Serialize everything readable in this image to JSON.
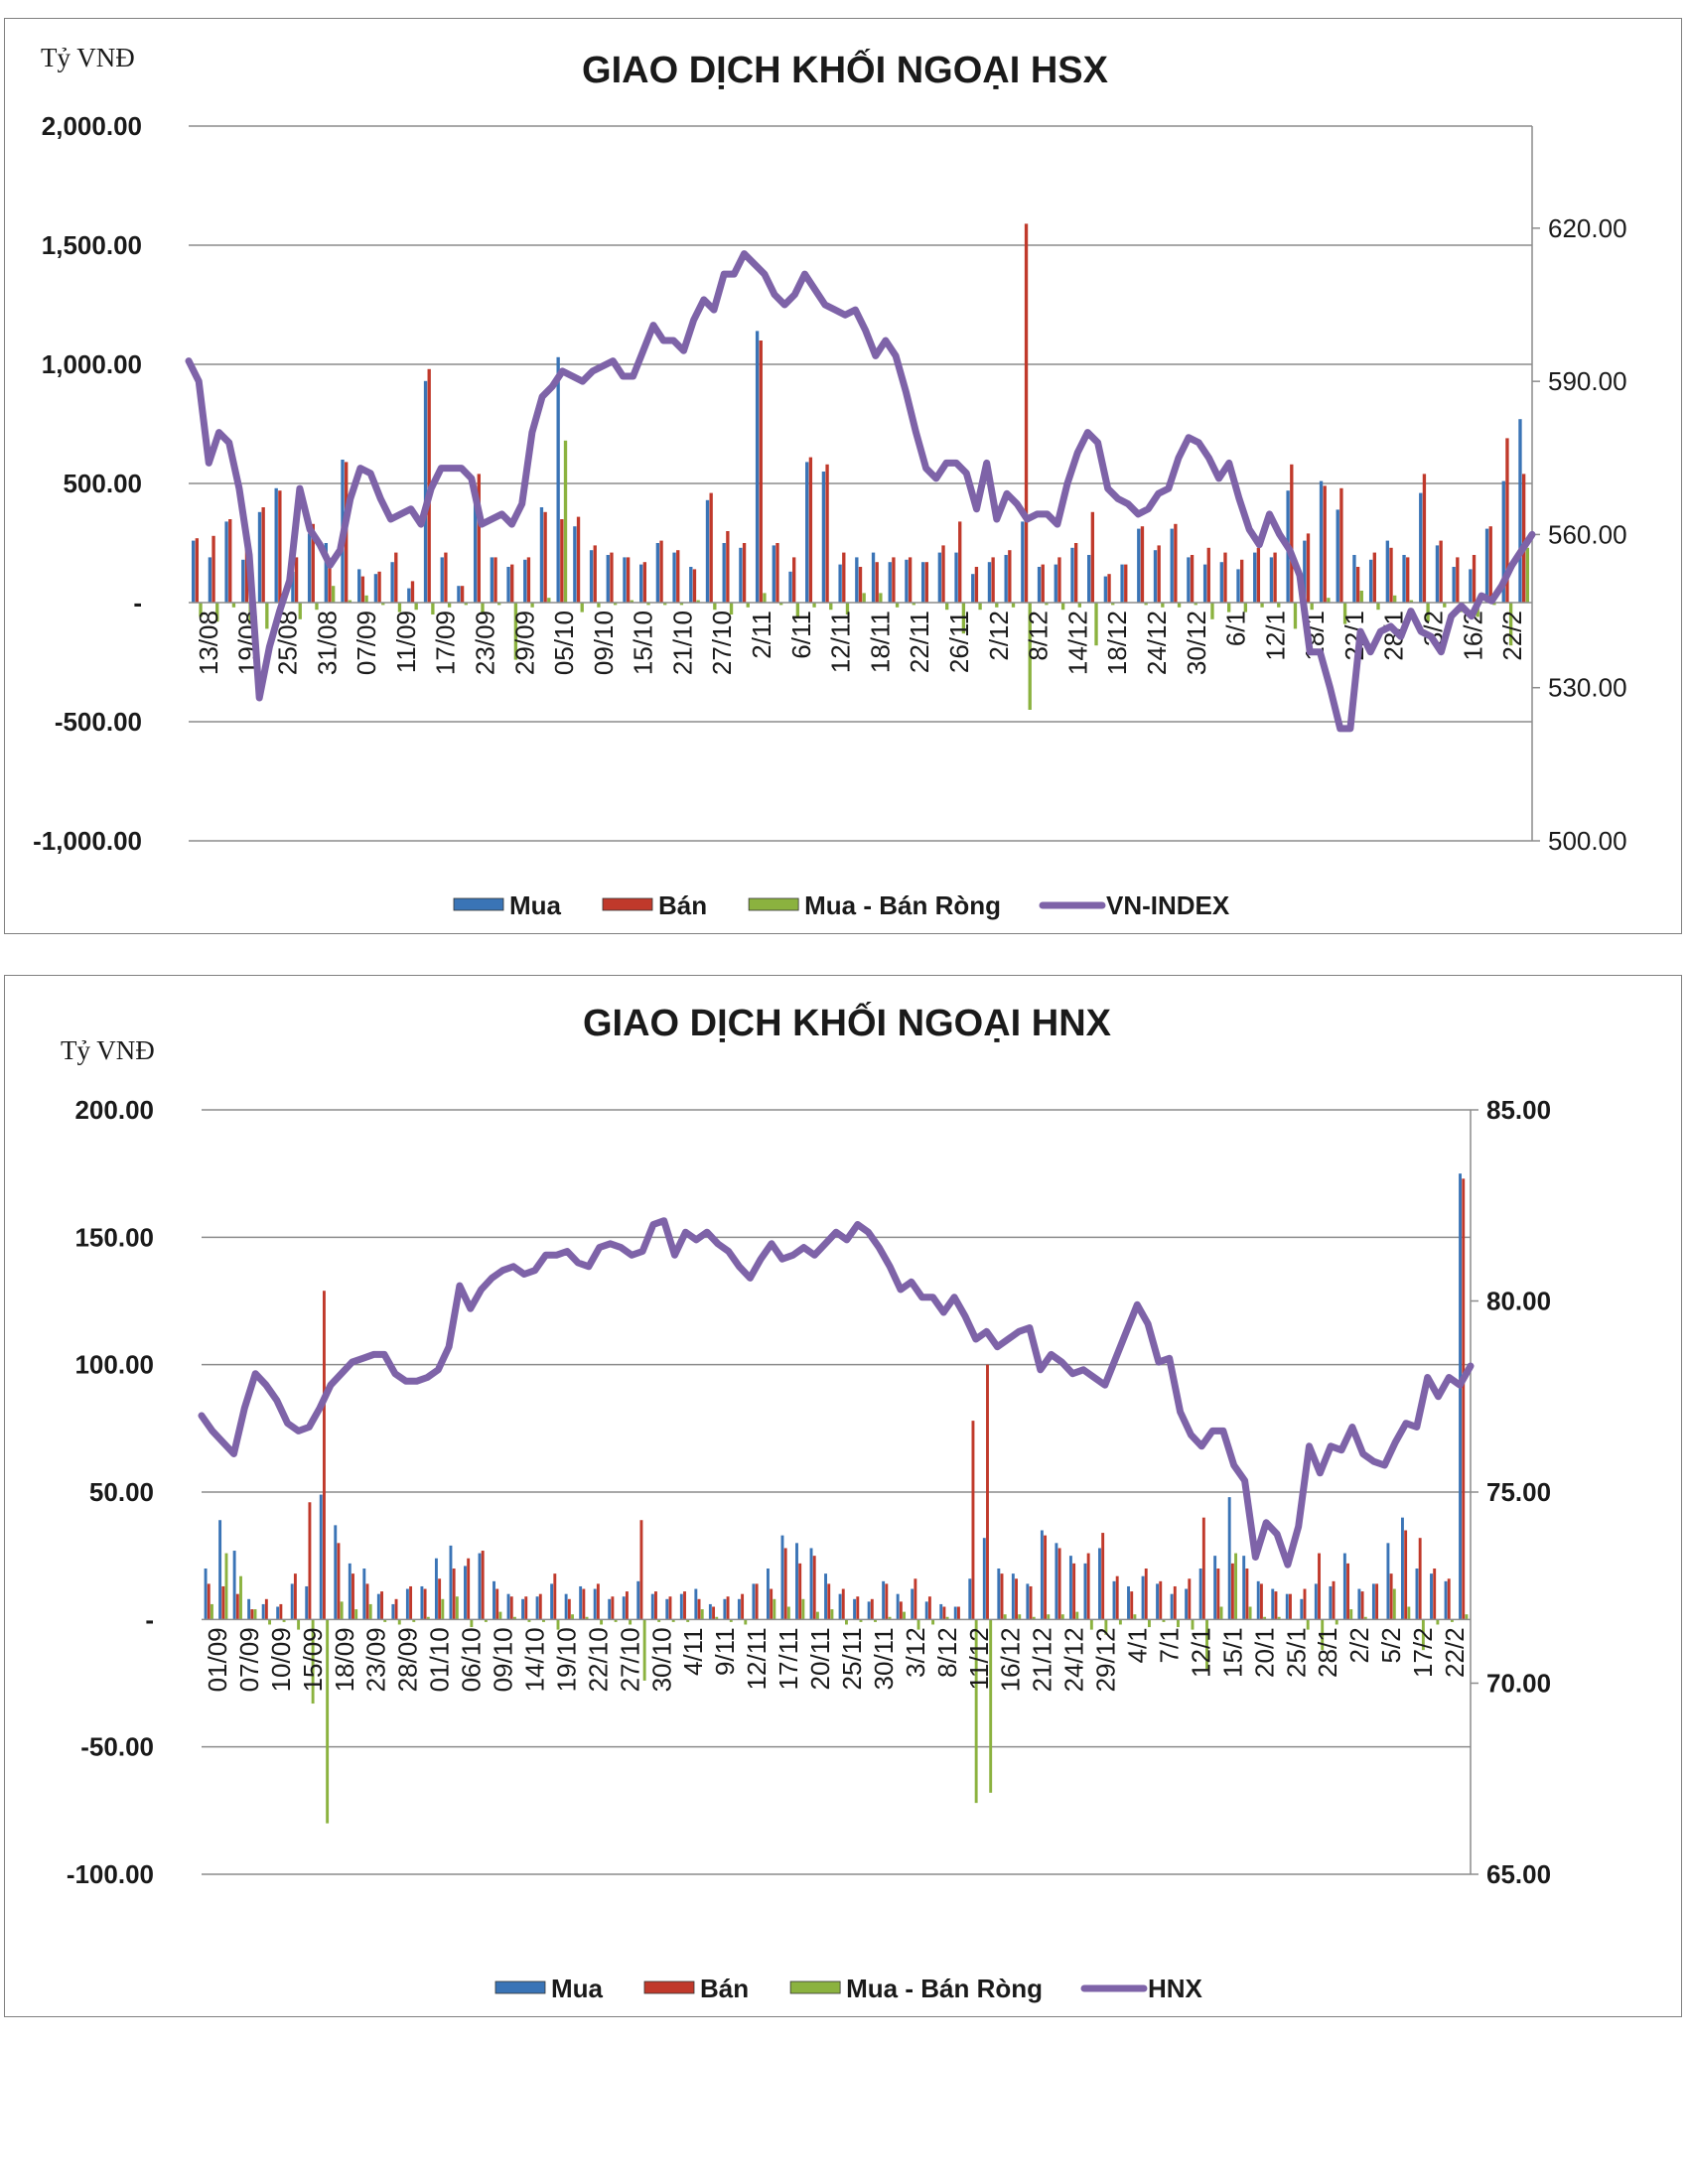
{
  "colors": {
    "buy": "#3a74b6",
    "sell": "#c0392b",
    "net": "#8bb23f",
    "index": "#7e63a8",
    "grid": "#8c8c8c"
  },
  "chart_data": [
    {
      "id": "hsx",
      "type": "bar",
      "title": "GIAO DỊCH KHỐI NGOẠI HSX",
      "unit_label": "Tỷ VNĐ",
      "ylim": [
        -1000,
        2000
      ],
      "y_ticks": [
        {
          "v": 2000,
          "label": "2,000.00"
        },
        {
          "v": 1500,
          "label": "1,500.00"
        },
        {
          "v": 1000,
          "label": "1,000.00"
        },
        {
          "v": 500,
          "label": "500.00"
        },
        {
          "v": 0,
          "label": "-"
        },
        {
          "v": -500,
          "label": "-500.00"
        },
        {
          "v": -1000,
          "label": "-1,000.00"
        }
      ],
      "y2lim": [
        500,
        640
      ],
      "y2_ticks": [
        {
          "v": 620,
          "label": "620.00"
        },
        {
          "v": 590,
          "label": "590.00"
        },
        {
          "v": 560,
          "label": "560.00"
        },
        {
          "v": 530,
          "label": "530.00"
        },
        {
          "v": 500,
          "label": "500.00"
        }
      ],
      "x_labels": [
        "13/08",
        "19/08",
        "25/08",
        "31/08",
        "07/09",
        "11/09",
        "17/09",
        "23/09",
        "29/09",
        "05/10",
        "09/10",
        "15/10",
        "21/10",
        "27/10",
        "2/11",
        "6/11",
        "12/11",
        "18/11",
        "22/11",
        "26/11",
        "2/12",
        "8/12",
        "14/12",
        "18/12",
        "24/12",
        "30/12",
        "6/1",
        "12/1",
        "18/1",
        "22/1",
        "28/1",
        "3/2",
        "16/2",
        "22/2"
      ],
      "legend": [
        "Mua",
        "Bán",
        "Mua - Bán Ròng",
        "VN-INDEX"
      ],
      "index_name": "VN-INDEX",
      "buy": [
        260,
        190,
        340,
        180,
        380,
        480,
        130,
        290,
        250,
        600,
        140,
        120,
        170,
        60,
        930,
        190,
        70,
        490,
        190,
        150,
        180,
        400,
        1030,
        320,
        220,
        200,
        190,
        160,
        250,
        210,
        150,
        430,
        250,
        230,
        1140,
        240,
        130,
        590,
        550,
        160,
        190,
        210,
        170,
        180,
        170,
        210,
        210,
        120,
        170,
        200,
        340,
        150,
        160,
        230,
        200,
        110,
        160,
        310,
        220,
        310,
        190,
        160,
        170,
        140,
        210,
        190,
        470,
        260,
        510,
        390,
        200,
        180,
        260,
        200,
        460,
        240,
        150,
        140,
        310,
        510,
        770
      ],
      "sell": [
        270,
        280,
        350,
        240,
        400,
        470,
        190,
        330,
        180,
        590,
        110,
        130,
        210,
        90,
        980,
        210,
        70,
        540,
        190,
        160,
        190,
        380,
        350,
        360,
        240,
        210,
        190,
        170,
        260,
        220,
        140,
        460,
        300,
        250,
        1100,
        250,
        190,
        610,
        580,
        210,
        150,
        170,
        190,
        190,
        170,
        240,
        340,
        150,
        190,
        220,
        1590,
        160,
        190,
        250,
        380,
        120,
        160,
        320,
        240,
        330,
        200,
        230,
        210,
        180,
        230,
        210,
        580,
        290,
        490,
        480,
        150,
        210,
        230,
        190,
        540,
        260,
        190,
        200,
        320,
        690,
        540
      ],
      "net": [
        -60,
        -80,
        -20,
        -90,
        -110,
        10,
        -70,
        -30,
        70,
        10,
        30,
        -10,
        -40,
        -30,
        -50,
        -20,
        -10,
        -50,
        -10,
        -240,
        -20,
        20,
        680,
        -40,
        -20,
        -10,
        10,
        -10,
        -10,
        -10,
        10,
        -30,
        -50,
        -20,
        40,
        -10,
        -60,
        -20,
        -30,
        -50,
        40,
        40,
        -20,
        -10,
        0,
        -30,
        -130,
        -30,
        -20,
        -20,
        -450,
        -10,
        -30,
        -20,
        -180,
        -10,
        0,
        -10,
        -20,
        -20,
        -10,
        -70,
        -40,
        -40,
        -20,
        -20,
        -110,
        -30,
        20,
        -90,
        50,
        -30,
        30,
        10,
        -80,
        -20,
        -40,
        -60,
        -10,
        -180,
        230
      ],
      "index": [
        594,
        590,
        574,
        580,
        578,
        569,
        556,
        528,
        538,
        545,
        551,
        569,
        561,
        558,
        554,
        557,
        567,
        573,
        572,
        567,
        563,
        564,
        565,
        562,
        569,
        573,
        573,
        573,
        571,
        562,
        563,
        564,
        562,
        566,
        580,
        587,
        589,
        592,
        591,
        590,
        592,
        593,
        594,
        591,
        591,
        596,
        601,
        598,
        598,
        596,
        602,
        606,
        604,
        611,
        611,
        615,
        613,
        611,
        607,
        605,
        607,
        611,
        608,
        605,
        604,
        603,
        604,
        600,
        595,
        598,
        595,
        588,
        580,
        573,
        571,
        574,
        574,
        572,
        565,
        574,
        563,
        568,
        566,
        563,
        564,
        564,
        562,
        570,
        576,
        580,
        578,
        569,
        567,
        566,
        564,
        565,
        568,
        569,
        575,
        579,
        578,
        575,
        571,
        574,
        567,
        561,
        558,
        564,
        560,
        557,
        552,
        537,
        537,
        530,
        522,
        522,
        541,
        537,
        541,
        542,
        540,
        545,
        541,
        540,
        537,
        544,
        546,
        544,
        548,
        547,
        550,
        554,
        557,
        560
      ]
    },
    {
      "id": "hnx",
      "type": "bar",
      "title": "GIAO DỊCH KHỐI NGOẠI HNX",
      "unit_label": "Tỷ VNĐ",
      "ylim": [
        -100,
        200
      ],
      "y_ticks": [
        {
          "v": 200,
          "label": "200.00"
        },
        {
          "v": 150,
          "label": "150.00"
        },
        {
          "v": 100,
          "label": "100.00"
        },
        {
          "v": 50,
          "label": "50.00"
        },
        {
          "v": 0,
          "label": "-"
        },
        {
          "v": -50,
          "label": "-50.00"
        },
        {
          "v": -100,
          "label": "-100.00"
        }
      ],
      "y2lim": [
        65,
        85
      ],
      "y2_ticks": [
        {
          "v": 85,
          "label": "85.00"
        },
        {
          "v": 80,
          "label": "80.00"
        },
        {
          "v": 75,
          "label": "75.00"
        },
        {
          "v": 70,
          "label": "70.00"
        },
        {
          "v": 65,
          "label": "65.00"
        }
      ],
      "x_labels": [
        "01/09",
        "07/09",
        "10/09",
        "15/09",
        "18/09",
        "23/09",
        "28/09",
        "01/10",
        "06/10",
        "09/10",
        "14/10",
        "19/10",
        "22/10",
        "27/10",
        "30/10",
        "4/11",
        "9/11",
        "12/11",
        "17/11",
        "20/11",
        "25/11",
        "30/11",
        "3/12",
        "8/12",
        "11/12",
        "16/12",
        "21/12",
        "24/12",
        "29/12",
        "4/1",
        "7/1",
        "12/1",
        "15/1",
        "20/1",
        "25/1",
        "28/1",
        "2/2",
        "5/2",
        "17/2",
        "22/2"
      ],
      "legend": [
        "Mua",
        "Bán",
        "Mua - Bán Ròng",
        "HNX"
      ],
      "index_name": "HNX",
      "buy": [
        20,
        39,
        27,
        8,
        6,
        5,
        14,
        13,
        49,
        37,
        22,
        20,
        10,
        6,
        12,
        13,
        24,
        29,
        21,
        26,
        15,
        10,
        8,
        9,
        14,
        10,
        13,
        12,
        8,
        9,
        15,
        10,
        8,
        10,
        12,
        6,
        8,
        8,
        14,
        20,
        33,
        30,
        28,
        18,
        10,
        8,
        7,
        15,
        10,
        12,
        7,
        6,
        5,
        16,
        32,
        20,
        18,
        14,
        35,
        30,
        25,
        22,
        28,
        15,
        13,
        17,
        14,
        10,
        12,
        20,
        25,
        48,
        25,
        15,
        12,
        10,
        8,
        14,
        13,
        26,
        12,
        14,
        30,
        40,
        20,
        18,
        15,
        175
      ],
      "sell": [
        14,
        13,
        10,
        4,
        8,
        6,
        18,
        46,
        129,
        30,
        18,
        14,
        11,
        8,
        13,
        12,
        16,
        20,
        24,
        27,
        12,
        9,
        9,
        10,
        18,
        8,
        12,
        14,
        9,
        11,
        39,
        11,
        9,
        11,
        8,
        5,
        9,
        10,
        14,
        12,
        28,
        22,
        25,
        14,
        12,
        9,
        8,
        14,
        7,
        16,
        9,
        5,
        5,
        78,
        100,
        18,
        16,
        13,
        33,
        28,
        22,
        26,
        34,
        17,
        11,
        20,
        15,
        13,
        16,
        40,
        20,
        22,
        20,
        14,
        11,
        10,
        12,
        26,
        15,
        22,
        11,
        14,
        18,
        35,
        32,
        20,
        16,
        173
      ],
      "net": [
        6,
        26,
        17,
        4,
        -2,
        -1,
        -4,
        -33,
        -80,
        7,
        4,
        6,
        -1,
        -2,
        -1,
        1,
        8,
        9,
        -3,
        -1,
        3,
        1,
        -1,
        -1,
        -4,
        2,
        1,
        -2,
        -1,
        -2,
        -24,
        -1,
        -1,
        -1,
        4,
        1,
        -1,
        -2,
        0,
        8,
        5,
        8,
        3,
        4,
        -2,
        -1,
        -1,
        1,
        3,
        -4,
        -2,
        1,
        0,
        -72,
        -68,
        2,
        2,
        1,
        2,
        2,
        3,
        -4,
        -6,
        -2,
        2,
        -3,
        -1,
        -3,
        -4,
        -20,
        5,
        26,
        5,
        1,
        1,
        0,
        -4,
        -12,
        -2,
        4,
        1,
        0,
        12,
        5,
        -12,
        -2,
        -1,
        2
      ],
      "index": [
        77.0,
        76.6,
        76.3,
        76.0,
        77.2,
        78.1,
        77.8,
        77.4,
        76.8,
        76.6,
        76.7,
        77.2,
        77.8,
        78.1,
        78.4,
        78.5,
        78.6,
        78.6,
        78.1,
        77.9,
        77.9,
        78.0,
        78.2,
        78.8,
        80.4,
        79.8,
        80.3,
        80.6,
        80.8,
        80.9,
        80.7,
        80.8,
        81.2,
        81.2,
        81.3,
        81.0,
        80.9,
        81.4,
        81.5,
        81.4,
        81.2,
        81.3,
        82.0,
        82.1,
        81.2,
        81.8,
        81.6,
        81.8,
        81.5,
        81.3,
        80.9,
        80.6,
        81.1,
        81.5,
        81.1,
        81.2,
        81.4,
        81.2,
        81.5,
        81.8,
        81.6,
        82.0,
        81.8,
        81.4,
        80.9,
        80.3,
        80.5,
        80.1,
        80.1,
        79.7,
        80.1,
        79.6,
        79.0,
        79.2,
        78.8,
        79.0,
        79.2,
        79.3,
        78.2,
        78.6,
        78.4,
        78.1,
        78.2,
        78.0,
        77.8,
        78.5,
        79.2,
        79.9,
        79.4,
        78.4,
        78.5,
        77.1,
        76.5,
        76.2,
        76.6,
        76.6,
        75.7,
        75.3,
        73.3,
        74.2,
        73.9,
        73.1,
        74.1,
        76.2,
        75.5,
        76.2,
        76.1,
        76.7,
        76.0,
        75.8,
        75.7,
        76.3,
        76.8,
        76.7,
        78.0,
        77.5,
        78.0,
        77.8,
        78.3
      ]
    }
  ]
}
